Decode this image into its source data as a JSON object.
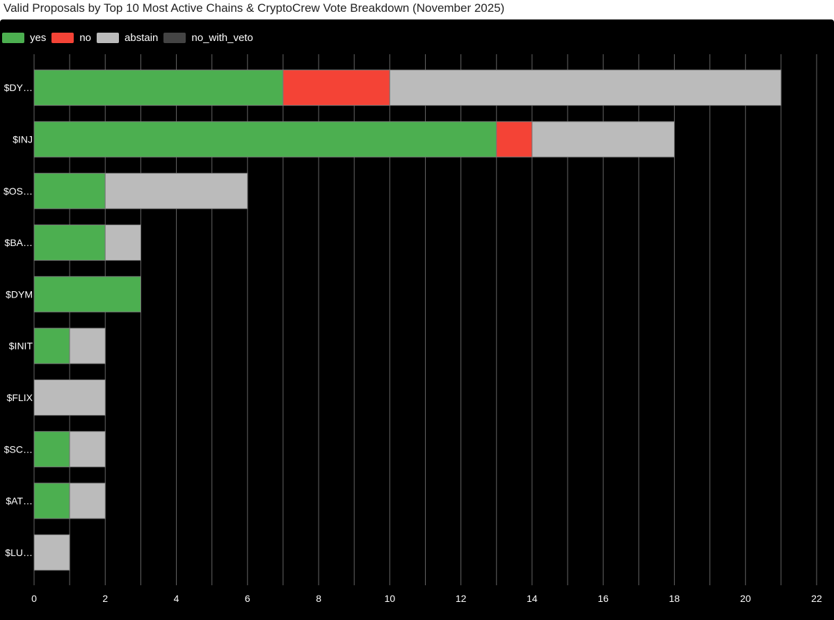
{
  "title": "Valid Proposals by Top 10 Most Active Chains & CryptoCrew Vote Breakdown (November 2025)",
  "colors": {
    "background": "#000000",
    "yes": "#4caf50",
    "no": "#f44336",
    "abstain": "#bbbbbb",
    "no_with_veto": "#444444",
    "grid": "#666666",
    "text": "#ffffff"
  },
  "chart_data": {
    "type": "bar",
    "orientation": "horizontal",
    "stacked": true,
    "categories": [
      "$DY…",
      "$INJ",
      "$OS…",
      "$BA…",
      "$DYM",
      "$INIT",
      "$FLIX",
      "$SC…",
      "$AT…",
      "$LU…"
    ],
    "series": [
      {
        "name": "yes",
        "color": "#4caf50",
        "values": [
          7,
          13,
          2,
          2,
          3,
          1,
          0,
          1,
          1,
          0
        ]
      },
      {
        "name": "no",
        "color": "#f44336",
        "values": [
          3,
          1,
          0,
          0,
          0,
          0,
          0,
          0,
          0,
          0
        ]
      },
      {
        "name": "abstain",
        "color": "#bbbbbb",
        "values": [
          11,
          4,
          4,
          1,
          0,
          1,
          2,
          1,
          1,
          1
        ]
      },
      {
        "name": "no_with_veto",
        "color": "#444444",
        "values": [
          0,
          0,
          0,
          0,
          0,
          0,
          0,
          0,
          0,
          0
        ]
      }
    ],
    "xlim": [
      0,
      22
    ],
    "x_ticks": [
      0,
      2,
      4,
      6,
      8,
      10,
      12,
      14,
      16,
      18,
      20,
      22
    ],
    "xlabel": "",
    "ylabel": "",
    "grid": true,
    "legend_position": "top-left"
  }
}
